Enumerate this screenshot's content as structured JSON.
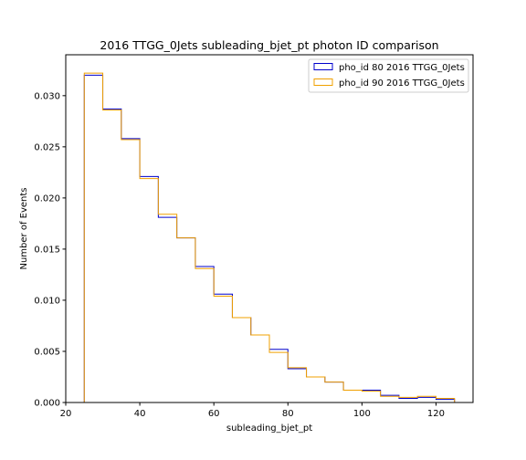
{
  "chart_data": {
    "type": "histogram-step",
    "title": "2016 TTGG_0Jets subleading_bjet_pt photon ID comparison",
    "xlabel": "subleading_bjet_pt",
    "ylabel": "Number of Events",
    "xlim": [
      20,
      130
    ],
    "ylim": [
      0,
      0.034
    ],
    "xticks": [
      20,
      40,
      60,
      80,
      100,
      120
    ],
    "xtick_labels": [
      "20",
      "40",
      "60",
      "80",
      "100",
      "120"
    ],
    "yticks": [
      0,
      0.005,
      0.01,
      0.015,
      0.02,
      0.025,
      0.03
    ],
    "ytick_labels": [
      "0.000",
      "0.005",
      "0.010",
      "0.015",
      "0.020",
      "0.025",
      "0.030"
    ],
    "grid": false,
    "legend_position": "top-right",
    "bin_edges": [
      25,
      30,
      35,
      40,
      45,
      50,
      55,
      60,
      65,
      70,
      75,
      80,
      85,
      90,
      95,
      100,
      105,
      110,
      115,
      120,
      125
    ],
    "series": [
      {
        "name": "pho_id 80 2016 TTGG_0Jets",
        "color": "#0000cc",
        "values": [
          0.032,
          0.0287,
          0.0258,
          0.0221,
          0.0181,
          0.0161,
          0.0133,
          0.0106,
          0.0083,
          0.0066,
          0.0052,
          0.0033,
          0.0025,
          0.002,
          0.0012,
          0.0012,
          0.0007,
          0.0004,
          0.0005,
          0.0003
        ]
      },
      {
        "name": "pho_id 90 2016 TTGG_0Jets",
        "color": "#f0a000",
        "values": [
          0.0322,
          0.0286,
          0.0257,
          0.0219,
          0.0184,
          0.0161,
          0.0131,
          0.0104,
          0.0083,
          0.0066,
          0.0049,
          0.0034,
          0.0025,
          0.002,
          0.0012,
          0.0011,
          0.0006,
          0.0005,
          0.0006,
          0.0004
        ]
      }
    ]
  }
}
